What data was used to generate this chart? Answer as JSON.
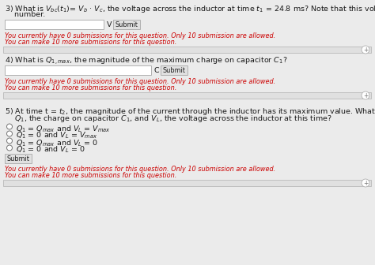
{
  "bg_color": "#ebebeb",
  "white": "#ffffff",
  "red_text": "#cc0000",
  "dark_text": "#1a1a1a",
  "light_gray": "#e0e0e0",
  "border_color": "#b0b0b0",
  "q3_line1": "3) What is $V_{bc}(t_1)$= $V_b$ · $V_c$, the voltage across the inductor at time $t_1$ = 24.8 ms? Note that this voltage is a signed",
  "q3_line2": "    number.",
  "q3_unit": "V",
  "q3_red1": "You currently have 0 submissions for this question. Only 10 submission are allowed.",
  "q3_red2": "You can make 10 more submissions for this question.",
  "q4_line1": "4) What is $Q_{1,max}$, the magnitude of the maximum charge on capacitor $C_1$?",
  "q4_unit": "C",
  "q4_red1": "You currently have 0 submissions for this question. Only 10 submission are allowed.",
  "q4_red2": "You can make 10 more submissions for this question.",
  "q5_line1": "5) At time t = $t_2$, the magnitude of the current through the inductor has its maximum value. What are the magnitudes of",
  "q5_line2": "    $Q_1$, the charge on capacitor $C_1$, and $V_L$, the voltage across the inductor at this time?",
  "q5_opts": [
    "$Q_1$ = $Q_{max}$ and $V_L$ = $V_{max}$",
    "$Q_1$ = 0 and $V_L$ = $V_{max}$",
    "$Q_1$ = $Q_{max}$ and $V_L$ = 0",
    "$Q_1$ = 0 and $V_L$ = 0"
  ],
  "submit_label": "Submit",
  "q5_red1": "You currently have 0 submissions for this question. Only 10 submission are allowed.",
  "q5_red2": "You can make 10 more submissions for this question.",
  "fs_main": 6.8,
  "fs_small": 5.9
}
